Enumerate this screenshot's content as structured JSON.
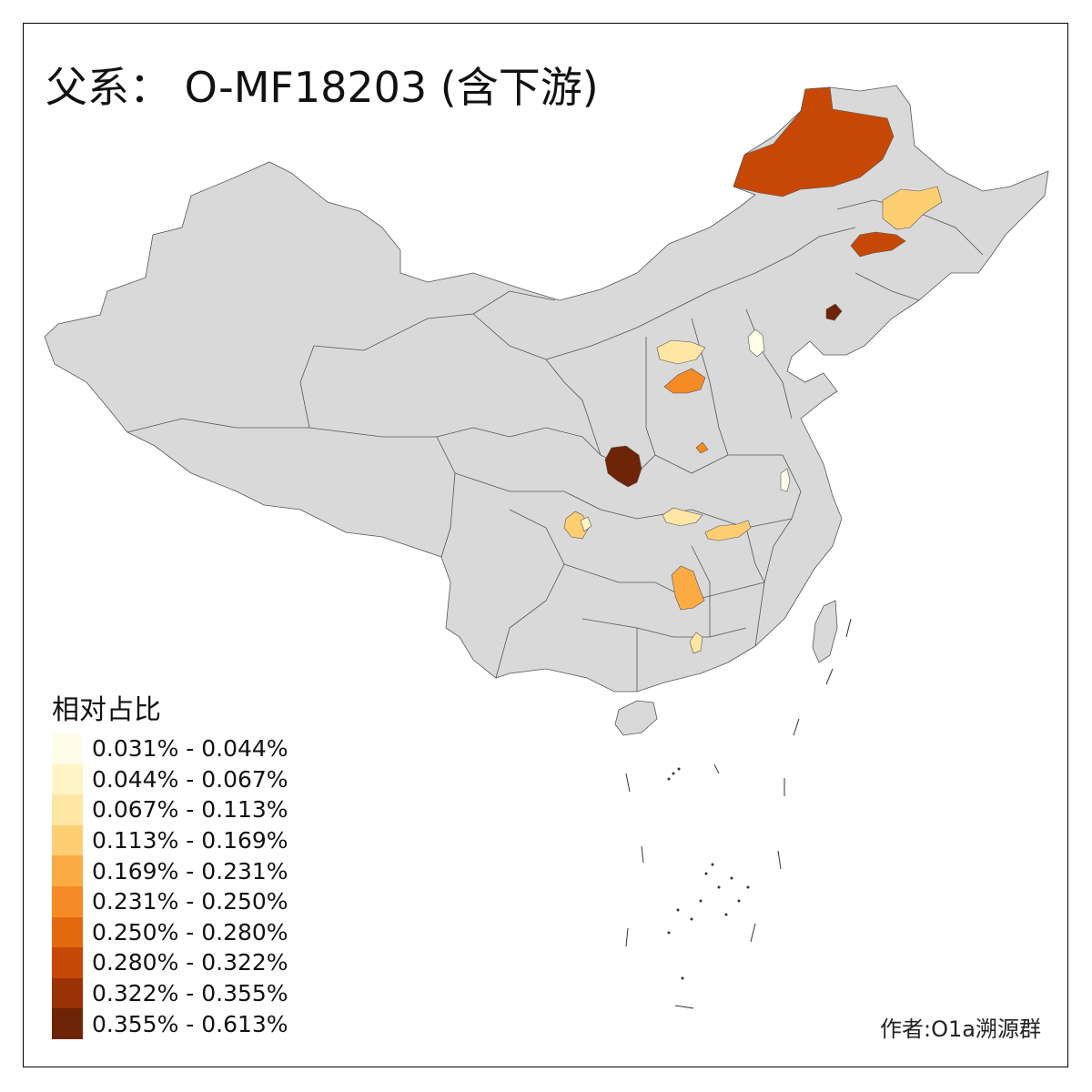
{
  "title": "父系： O-MF18203 (含下游)",
  "legend": {
    "title": "相对占比",
    "items": [
      {
        "label": "0.031% - 0.044%",
        "color": "#fffde8"
      },
      {
        "label": "0.044% - 0.067%",
        "color": "#fff4c6"
      },
      {
        "label": "0.067% - 0.113%",
        "color": "#fee6a4"
      },
      {
        "label": "0.113% - 0.169%",
        "color": "#fecf72"
      },
      {
        "label": "0.169% - 0.231%",
        "color": "#fcab44"
      },
      {
        "label": "0.231% - 0.250%",
        "color": "#f68a24"
      },
      {
        "label": "0.250% - 0.280%",
        "color": "#e5690f"
      },
      {
        "label": "0.280% - 0.322%",
        "color": "#c74805"
      },
      {
        "label": "0.322% - 0.355%",
        "color": "#9a3205"
      },
      {
        "label": "0.355% - 0.613%",
        "color": "#6e2406"
      }
    ]
  },
  "credit": "作者:O1a溯源群",
  "colors": {
    "base_region": "#d9d9d9",
    "border": "#555555"
  }
}
